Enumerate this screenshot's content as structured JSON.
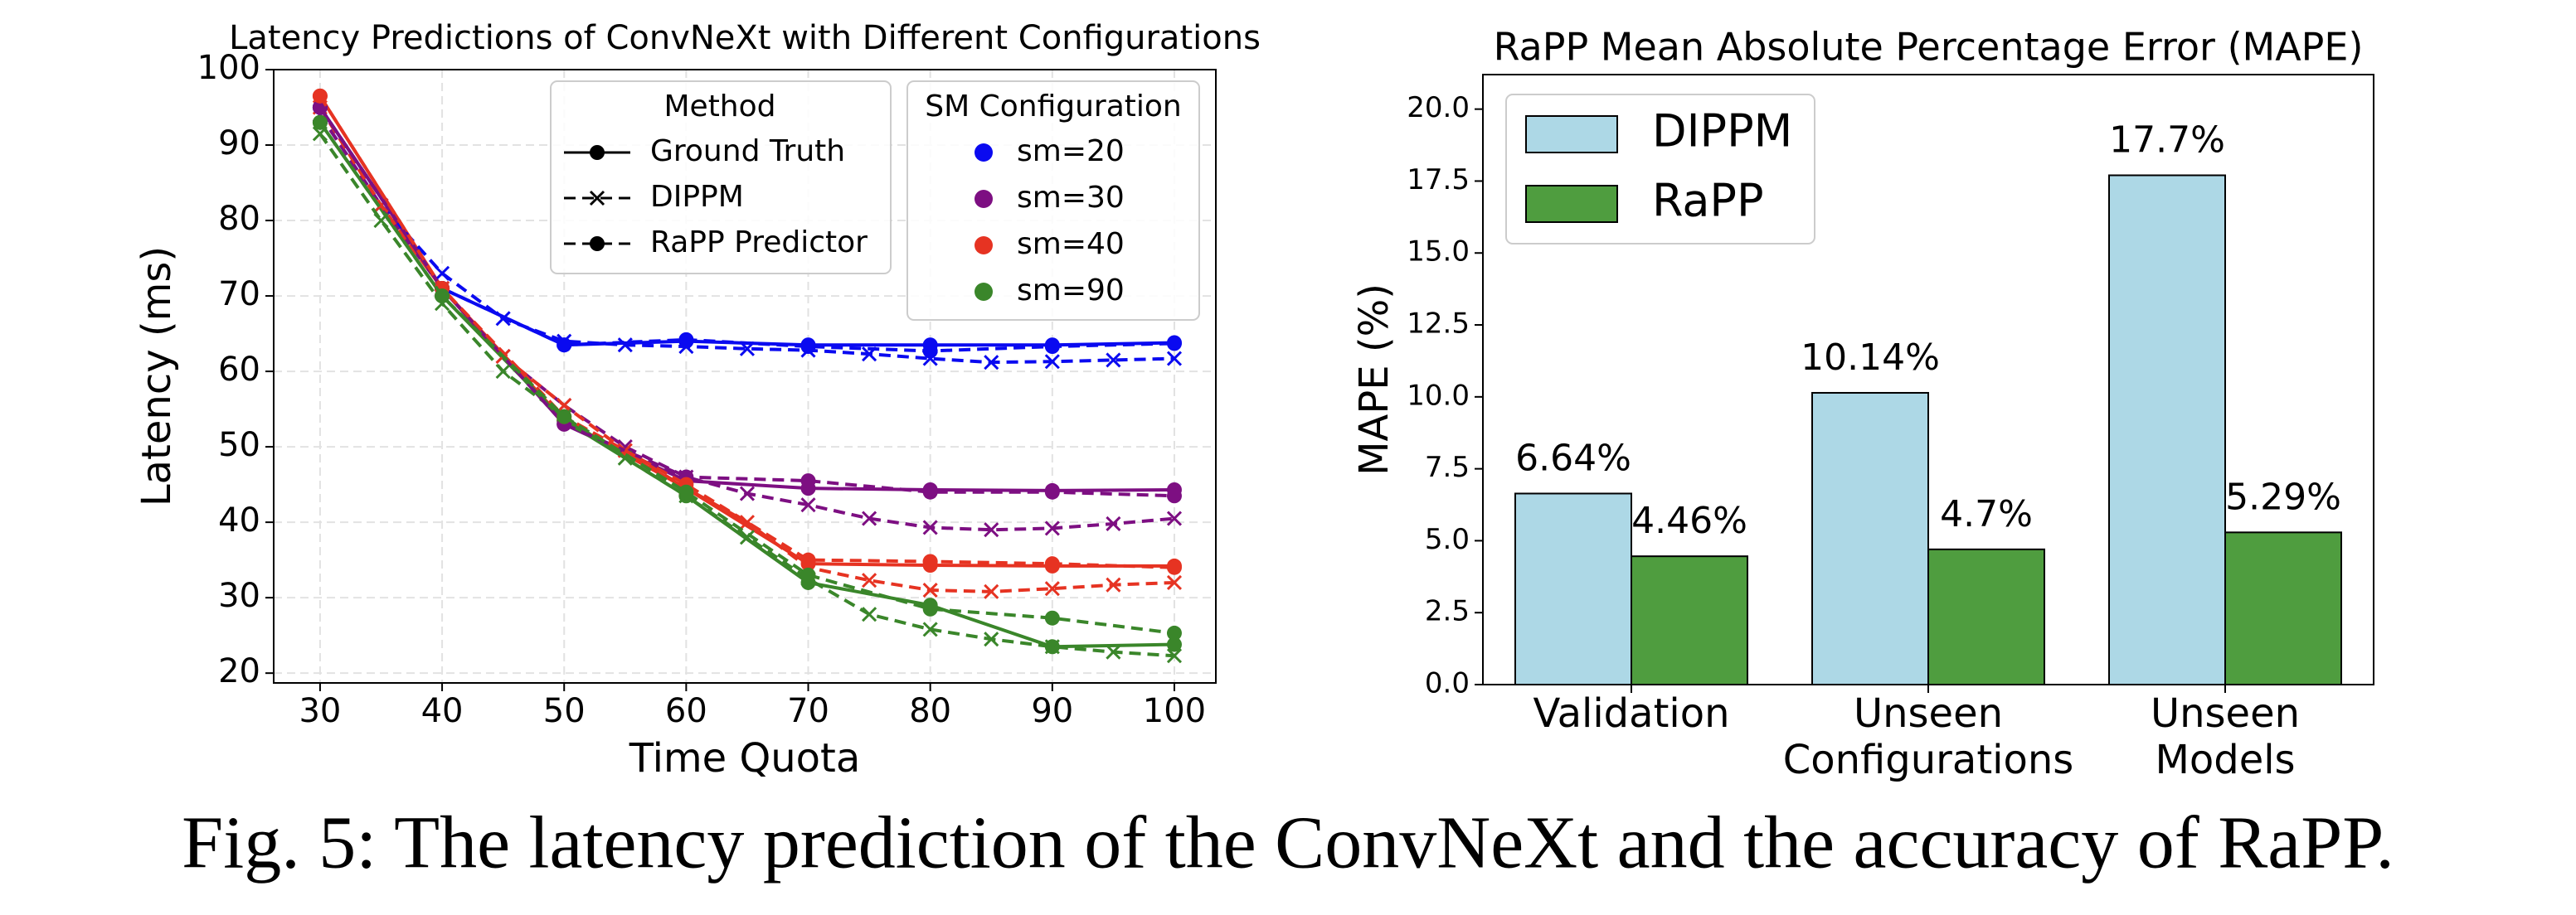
{
  "chart_data": [
    {
      "type": "line",
      "title": "Latency Predictions of ConvNeXt with Different Configurations",
      "xlabel": "Time Quota",
      "ylabel": "Latency (ms)",
      "xlim": [
        26.2,
        103.4
      ],
      "xticks": [
        30,
        40,
        50,
        60,
        70,
        80,
        90,
        100
      ],
      "ylim": [
        18.7,
        100
      ],
      "yticks": [
        20,
        30,
        40,
        50,
        60,
        70,
        80,
        90,
        100
      ],
      "grid": true,
      "method_legend_title": "Method",
      "config_legend_title": "SM Configuration",
      "configs": [
        {
          "name": "sm=20",
          "color": "#0a0af0"
        },
        {
          "name": "sm=30",
          "color": "#7d0f82"
        },
        {
          "name": "sm=40",
          "color": "#e63322"
        },
        {
          "name": "sm=90",
          "color": "#3a862a"
        }
      ],
      "methods": [
        {
          "name": "Ground Truth",
          "style": "solid",
          "marker": "circle",
          "x": [
            30,
            40,
            50,
            60,
            70,
            80,
            90,
            100
          ],
          "series": [
            {
              "values": [
                95,
                71,
                63.5,
                64,
                63.5,
                63.5,
                63.5,
                63.8
              ]
            },
            {
              "values": [
                95,
                71,
                53,
                45.5,
                44.5,
                44.3,
                44.2,
                44.3
              ]
            },
            {
              "values": [
                96.5,
                71,
                53.5,
                44.5,
                34.5,
                34.3,
                34.2,
                34.2
              ]
            },
            {
              "values": [
                93,
                70,
                53.5,
                43.5,
                32,
                29,
                23.5,
                23.8
              ]
            }
          ]
        },
        {
          "name": "DIPPM",
          "style": "dashed",
          "marker": "x",
          "x": [
            30,
            35,
            40,
            45,
            50,
            55,
            60,
            65,
            70,
            75,
            80,
            85,
            90,
            95,
            100
          ],
          "series": [
            {
              "values": [
                94,
                82,
                73,
                67,
                64,
                63.5,
                63.3,
                63,
                62.8,
                62.3,
                61.7,
                61.2,
                61.3,
                61.5,
                61.7
              ]
            },
            {
              "values": [
                94,
                82,
                71,
                62,
                55.5,
                50,
                46,
                43.8,
                42.3,
                40.5,
                39.3,
                39,
                39.2,
                39.8,
                40.5
              ]
            },
            {
              "values": [
                95,
                82,
                71,
                62,
                55.5,
                49.5,
                44.5,
                40,
                34,
                32.3,
                31,
                30.8,
                31.2,
                31.7,
                32
              ]
            },
            {
              "values": [
                91.5,
                80,
                69,
                60,
                54,
                48.5,
                43.5,
                38,
                32.5,
                27.8,
                25.8,
                24.5,
                23.5,
                22.8,
                22.3
              ]
            }
          ]
        },
        {
          "name": "RaPP Predictor",
          "style": "dashed",
          "marker": "circle",
          "x": [
            30,
            40,
            50,
            60,
            70,
            80,
            90,
            100
          ],
          "series": [
            {
              "values": [
                95,
                71,
                63.5,
                64.2,
                63.3,
                62.7,
                63.3,
                63.7
              ]
            },
            {
              "values": [
                95,
                71,
                53,
                46,
                45.5,
                44,
                44,
                43.5
              ]
            },
            {
              "values": [
                96.5,
                71,
                54,
                45,
                35,
                34.8,
                34.5,
                34
              ]
            },
            {
              "values": [
                93,
                70,
                54,
                44,
                33,
                28.5,
                27.3,
                25.3
              ]
            }
          ]
        }
      ]
    },
    {
      "type": "bar",
      "title": "RaPP Mean Absolute Percentage Error (MAPE)",
      "ylabel": "MAPE (%)",
      "categories": [
        [
          "Validation"
        ],
        [
          "Unseen",
          "Configurations"
        ],
        [
          "Unseen",
          "Models"
        ]
      ],
      "ylim": [
        0,
        21.2
      ],
      "yticks": [
        {
          "value": 0,
          "label": "0.0"
        },
        2.5,
        {
          "value": 5,
          "label": "5.0"
        },
        7.5,
        {
          "value": 10,
          "label": "10.0"
        },
        12.5,
        {
          "value": 15,
          "label": "15.0"
        },
        17.5,
        {
          "value": 20,
          "label": "20.0"
        }
      ],
      "legend": "upper left",
      "series": [
        {
          "name": "DIPPM",
          "color": "#add8e6",
          "values": [
            6.64,
            10.14,
            17.7
          ],
          "value_labels": [
            "6.64%",
            "10.14%",
            "17.7%"
          ]
        },
        {
          "name": "RaPP",
          "color": "#4f9d3f",
          "values": [
            4.46,
            4.7,
            5.29
          ],
          "value_labels": [
            "4.46%",
            "4.7%",
            "5.29%"
          ]
        }
      ]
    }
  ],
  "caption": "Fig. 5: The latency prediction of the ConvNeXt and the accuracy of RaPP."
}
